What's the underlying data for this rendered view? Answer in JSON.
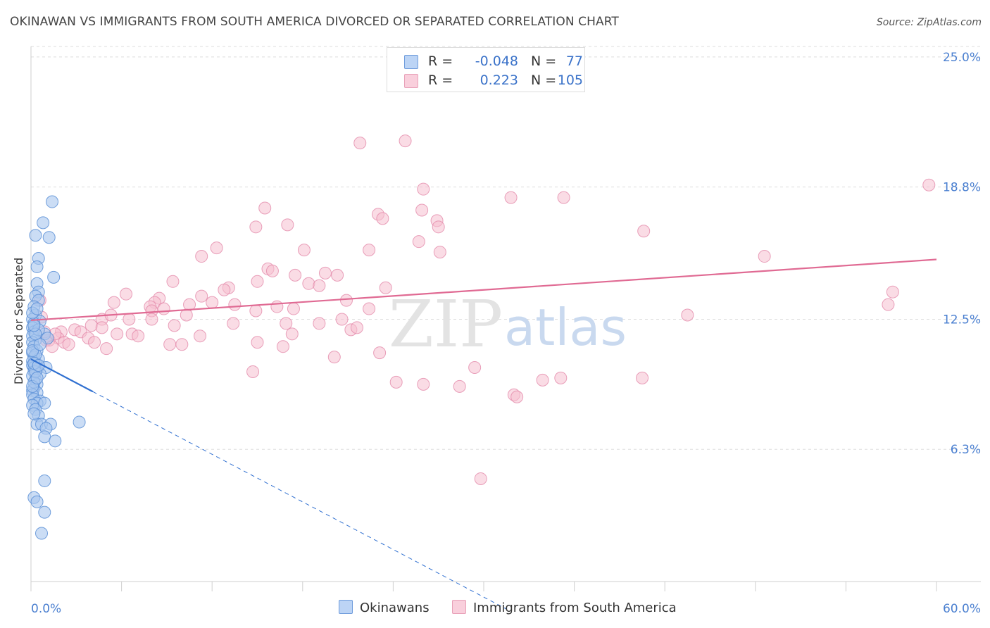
{
  "title": "OKINAWAN VS IMMIGRANTS FROM SOUTH AMERICA DIVORCED OR SEPARATED CORRELATION CHART",
  "source": "Source: ZipAtlas.com",
  "watermark": {
    "zip": "ZIP",
    "atlas": "atlas"
  },
  "colors": {
    "blue_fill": "#a9c7ef",
    "blue_stroke": "#5b8fd6",
    "blue_line": "#2f6fd0",
    "pink_fill": "#f6bfd0",
    "pink_stroke": "#e38aaa",
    "pink_line": "#e06a93",
    "tick_text": "#4a7fd0",
    "grid": "#dddddd"
  },
  "legend": {
    "rows": [
      {
        "r_label": "R =",
        "r_value": "-0.048",
        "n_label": "N =",
        "n_value": "77"
      },
      {
        "r_label": "R =",
        "r_value": "0.223",
        "n_label": "N =",
        "n_value": "105"
      }
    ]
  },
  "bottom_legend": {
    "series1": "Okinawans",
    "series2": "Immigrants from South America"
  },
  "chart_data": {
    "type": "scatter",
    "title": "OKINAWAN VS IMMIGRANTS FROM SOUTH AMERICA DIVORCED OR SEPARATED CORRELATION CHART",
    "xlabel": "",
    "ylabel": "Divorced or Separated",
    "xlim": [
      0,
      60
    ],
    "ylim": [
      0,
      25.5
    ],
    "x_tick_labels": [
      "0.0%",
      "60.0%"
    ],
    "y_ticks": [
      6.3,
      12.5,
      18.8,
      25.0
    ],
    "y_tick_labels": [
      "6.3%",
      "12.5%",
      "18.8%",
      "25.0%"
    ],
    "grid": true,
    "legend_position": "top-center",
    "series": [
      {
        "name": "Okinawans",
        "r": -0.048,
        "n": 77,
        "trend": {
          "x0": 0,
          "y0": 10.6,
          "x1": 4.1,
          "y1": 9.05,
          "dashed_to_x": 31.5
        },
        "points": [
          [
            1.4,
            18.1
          ],
          [
            0.8,
            17.1
          ],
          [
            1.2,
            16.4
          ],
          [
            0.3,
            16.5
          ],
          [
            0.5,
            15.4
          ],
          [
            0.4,
            15.0
          ],
          [
            1.5,
            14.5
          ],
          [
            0.4,
            14.2
          ],
          [
            0.5,
            13.8
          ],
          [
            0.3,
            13.6
          ],
          [
            0.5,
            13.4
          ],
          [
            0.2,
            13.1
          ],
          [
            0.3,
            12.7
          ],
          [
            0.1,
            12.5
          ],
          [
            0.6,
            12.4
          ],
          [
            0.2,
            12.3
          ],
          [
            0.1,
            12.1
          ],
          [
            0.2,
            11.9
          ],
          [
            0.9,
            11.8
          ],
          [
            0.1,
            11.7
          ],
          [
            1.1,
            11.6
          ],
          [
            0.3,
            11.5
          ],
          [
            0.1,
            11.4
          ],
          [
            0.2,
            11.2
          ],
          [
            0.4,
            11.0
          ],
          [
            0.1,
            10.9
          ],
          [
            0.2,
            10.7
          ],
          [
            0.5,
            10.6
          ],
          [
            0.1,
            10.5
          ],
          [
            0.3,
            10.4
          ],
          [
            0.1,
            10.3
          ],
          [
            0.2,
            10.2
          ],
          [
            0.4,
            10.1
          ],
          [
            1.0,
            10.2
          ],
          [
            0.2,
            10.0
          ],
          [
            0.6,
            9.9
          ],
          [
            0.1,
            9.8
          ],
          [
            0.3,
            9.6
          ],
          [
            0.4,
            9.4
          ],
          [
            0.2,
            9.2
          ],
          [
            0.1,
            9.1
          ],
          [
            0.4,
            9.0
          ],
          [
            0.1,
            8.9
          ],
          [
            0.2,
            8.7
          ],
          [
            0.6,
            8.6
          ],
          [
            0.4,
            8.5
          ],
          [
            0.9,
            8.5
          ],
          [
            0.1,
            8.4
          ],
          [
            0.3,
            8.2
          ],
          [
            0.5,
            7.9
          ],
          [
            0.4,
            7.5
          ],
          [
            0.7,
            7.5
          ],
          [
            1.3,
            7.5
          ],
          [
            1.0,
            7.3
          ],
          [
            3.2,
            7.6
          ],
          [
            0.9,
            6.9
          ],
          [
            1.6,
            6.7
          ],
          [
            0.9,
            4.8
          ],
          [
            0.2,
            4.0
          ],
          [
            0.4,
            3.8
          ],
          [
            0.9,
            3.3
          ],
          [
            0.7,
            2.3
          ],
          [
            0.3,
            10.8
          ],
          [
            0.5,
            12.0
          ],
          [
            0.2,
            9.5
          ],
          [
            0.1,
            11.0
          ],
          [
            0.3,
            10.0
          ],
          [
            0.2,
            8.0
          ],
          [
            0.6,
            11.3
          ],
          [
            0.1,
            12.8
          ],
          [
            0.4,
            13.0
          ],
          [
            0.2,
            10.4
          ],
          [
            0.1,
            9.3
          ],
          [
            0.3,
            11.8
          ],
          [
            0.5,
            10.3
          ],
          [
            0.2,
            12.2
          ],
          [
            0.4,
            9.7
          ]
        ]
      },
      {
        "name": "Immigrants from South America",
        "r": 0.223,
        "n": 105,
        "trend": {
          "x0": 0,
          "y0": 12.45,
          "x1": 60,
          "y1": 15.35
        },
        "points": [
          [
            21.8,
            20.9
          ],
          [
            24.8,
            21.0
          ],
          [
            26.0,
            18.7
          ],
          [
            59.5,
            18.9
          ],
          [
            31.8,
            18.3
          ],
          [
            35.3,
            18.3
          ],
          [
            15.5,
            17.8
          ],
          [
            23.0,
            17.5
          ],
          [
            14.9,
            16.9
          ],
          [
            17.0,
            17.0
          ],
          [
            25.9,
            17.7
          ],
          [
            23.3,
            17.3
          ],
          [
            26.9,
            17.2
          ],
          [
            27.0,
            16.9
          ],
          [
            40.6,
            16.7
          ],
          [
            25.7,
            16.2
          ],
          [
            12.3,
            15.9
          ],
          [
            11.3,
            15.5
          ],
          [
            18.1,
            15.8
          ],
          [
            22.4,
            15.8
          ],
          [
            27.1,
            15.7
          ],
          [
            48.6,
            15.5
          ],
          [
            15.7,
            14.9
          ],
          [
            16.0,
            14.8
          ],
          [
            17.5,
            14.6
          ],
          [
            19.5,
            14.7
          ],
          [
            18.4,
            14.2
          ],
          [
            19.1,
            14.1
          ],
          [
            9.4,
            14.3
          ],
          [
            15.0,
            14.3
          ],
          [
            23.5,
            14.0
          ],
          [
            20.3,
            14.6
          ],
          [
            13.1,
            14.0
          ],
          [
            12.8,
            13.9
          ],
          [
            6.3,
            13.7
          ],
          [
            11.3,
            13.6
          ],
          [
            8.5,
            13.5
          ],
          [
            13.5,
            13.2
          ],
          [
            12.0,
            13.3
          ],
          [
            8.2,
            13.3
          ],
          [
            5.5,
            13.3
          ],
          [
            7.9,
            13.1
          ],
          [
            10.5,
            13.2
          ],
          [
            16.3,
            13.1
          ],
          [
            17.4,
            13.0
          ],
          [
            14.9,
            12.9
          ],
          [
            8.8,
            13.0
          ],
          [
            8.0,
            12.9
          ],
          [
            20.9,
            13.4
          ],
          [
            22.4,
            13.0
          ],
          [
            10.3,
            12.7
          ],
          [
            0.6,
            13.4
          ],
          [
            4.7,
            12.5
          ],
          [
            8.0,
            12.5
          ],
          [
            5.3,
            12.7
          ],
          [
            6.5,
            12.5
          ],
          [
            13.4,
            12.3
          ],
          [
            16.9,
            12.3
          ],
          [
            19.1,
            12.3
          ],
          [
            20.6,
            12.5
          ],
          [
            21.2,
            12.0
          ],
          [
            21.6,
            12.1
          ],
          [
            4.0,
            12.2
          ],
          [
            4.7,
            12.1
          ],
          [
            2.9,
            12.0
          ],
          [
            9.5,
            12.2
          ],
          [
            0.7,
            12.6
          ],
          [
            2.0,
            11.9
          ],
          [
            3.3,
            11.9
          ],
          [
            5.7,
            11.8
          ],
          [
            6.7,
            11.8
          ],
          [
            1.8,
            11.6
          ],
          [
            3.8,
            11.6
          ],
          [
            1.2,
            11.5
          ],
          [
            2.2,
            11.4
          ],
          [
            4.2,
            11.4
          ],
          [
            7.1,
            11.7
          ],
          [
            11.2,
            11.7
          ],
          [
            15.0,
            11.4
          ],
          [
            17.3,
            11.8
          ],
          [
            9.2,
            11.3
          ],
          [
            10.0,
            11.3
          ],
          [
            1.0,
            11.5
          ],
          [
            1.4,
            11.2
          ],
          [
            5.0,
            11.1
          ],
          [
            2.5,
            11.3
          ],
          [
            16.7,
            11.2
          ],
          [
            20.1,
            10.7
          ],
          [
            23.1,
            10.9
          ],
          [
            14.7,
            10.0
          ],
          [
            29.4,
            10.2
          ],
          [
            24.2,
            9.5
          ],
          [
            26.0,
            9.4
          ],
          [
            28.4,
            9.3
          ],
          [
            33.9,
            9.6
          ],
          [
            35.1,
            9.7
          ],
          [
            40.5,
            9.7
          ],
          [
            32.0,
            8.9
          ],
          [
            32.2,
            8.8
          ],
          [
            57.1,
            13.8
          ],
          [
            56.8,
            13.2
          ],
          [
            43.5,
            12.7
          ],
          [
            29.8,
            4.9
          ],
          [
            1.6,
            11.8
          ],
          [
            0.9,
            11.9
          ]
        ]
      }
    ]
  }
}
